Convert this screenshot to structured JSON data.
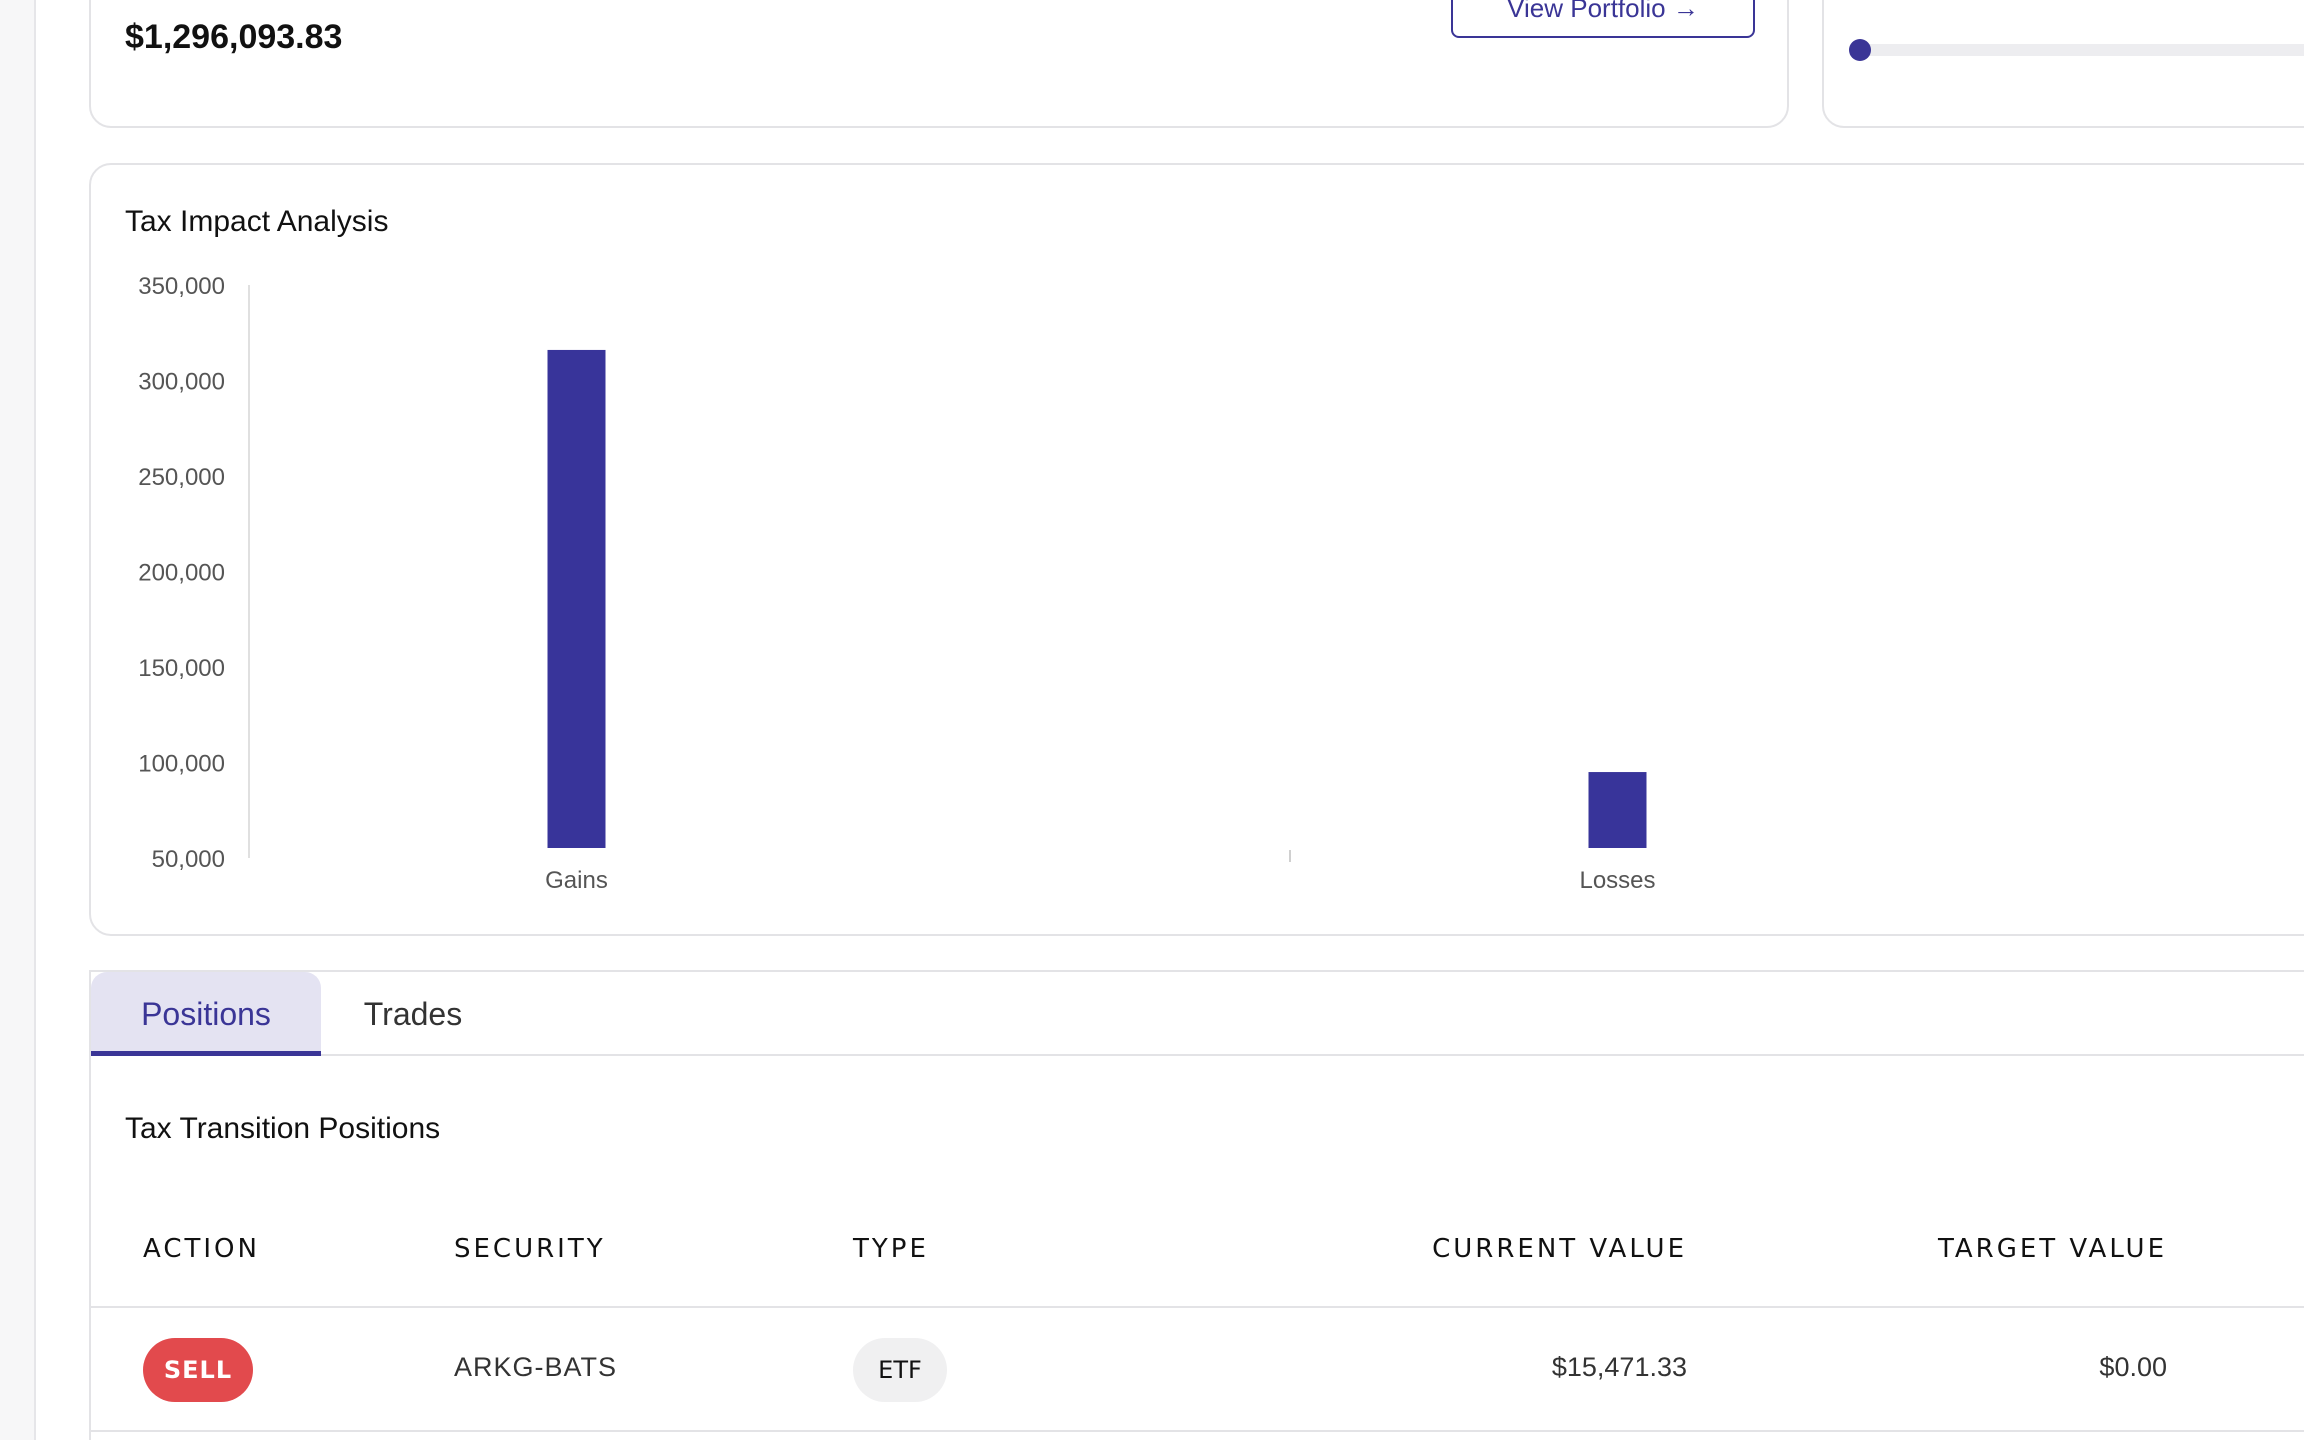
{
  "summary": {
    "total_value": "$1,296,093.83",
    "view_portfolio_label": "View Portfolio →"
  },
  "slider": {
    "level": 0
  },
  "tax_chart": {
    "title": "Tax Impact Analysis"
  },
  "chart_data": {
    "type": "bar",
    "title": "Tax Impact Analysis",
    "categories": [
      "Gains",
      "Losses"
    ],
    "values": [
      316000,
      95000
    ],
    "ylim": [
      50000,
      350000
    ],
    "yticks": [
      50000,
      100000,
      150000,
      200000,
      250000,
      300000,
      350000
    ],
    "ytick_labels": [
      "50,000",
      "100,000",
      "150,000",
      "200,000",
      "250,000",
      "300,000",
      "350,000"
    ],
    "xlabel": "",
    "ylabel": "",
    "grid": false,
    "legend": "none",
    "bar_color": "#38349a"
  },
  "tabs": [
    {
      "label": "Positions",
      "active": true
    },
    {
      "label": "Trades",
      "active": false
    }
  ],
  "positions": {
    "title": "Tax Transition Positions",
    "columns": {
      "action": "ACTION",
      "security": "SECURITY",
      "type": "TYPE",
      "current_value": "CURRENT VALUE",
      "target_value": "TARGET VALUE"
    },
    "rows": [
      {
        "action": "SELL",
        "security": "ARKG-BATS",
        "type": "ETF",
        "current_value": "$15,471.33",
        "target_value": "$0.00"
      }
    ]
  },
  "colors": {
    "accent": "#3a3596",
    "sell": "#e24a4d"
  }
}
